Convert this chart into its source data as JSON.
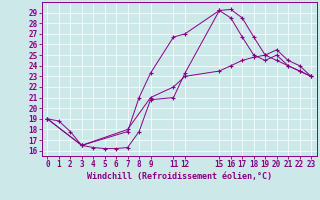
{
  "xlabel": "Windchill (Refroidissement éolien,°C)",
  "background_color": "#cce8e8",
  "line_color": "#880088",
  "xlim": [
    -0.5,
    23.5
  ],
  "ylim": [
    15.5,
    30.0
  ],
  "yticks": [
    16,
    17,
    18,
    19,
    20,
    21,
    22,
    23,
    24,
    25,
    26,
    27,
    28,
    29
  ],
  "xtick_positions": [
    0,
    1,
    2,
    3,
    4,
    5,
    6,
    7,
    8,
    9,
    11,
    12,
    15,
    16,
    17,
    18,
    19,
    20,
    21,
    22,
    23
  ],
  "xtick_labels": [
    "0",
    "1",
    "2",
    "3",
    "4",
    "5",
    "6",
    "7",
    "8",
    "9",
    "11",
    "12",
    "15",
    "16",
    "17",
    "18",
    "19",
    "20",
    "21",
    "22",
    "23"
  ],
  "curve1_x": [
    0,
    1,
    2,
    3,
    4,
    5,
    6,
    7,
    8,
    9,
    11,
    12,
    15,
    16,
    17,
    18,
    19,
    20,
    21,
    22,
    23
  ],
  "curve1_y": [
    19.0,
    18.8,
    17.8,
    16.5,
    16.3,
    16.2,
    16.2,
    16.3,
    17.8,
    20.8,
    21.0,
    23.3,
    29.2,
    29.3,
    28.5,
    26.7,
    25.0,
    24.5,
    24.0,
    23.5,
    23.0
  ],
  "curve2_x": [
    0,
    3,
    7,
    8,
    9,
    11,
    12,
    15,
    16,
    17,
    18,
    19,
    20,
    21,
    22,
    23
  ],
  "curve2_y": [
    19.0,
    16.5,
    17.8,
    21.0,
    23.3,
    26.7,
    27.0,
    29.2,
    28.5,
    26.7,
    25.0,
    24.5,
    25.0,
    24.0,
    23.5,
    23.0
  ],
  "curve3_x": [
    0,
    3,
    7,
    9,
    11,
    12,
    15,
    16,
    17,
    18,
    19,
    20,
    21,
    22,
    23
  ],
  "curve3_y": [
    19.0,
    16.5,
    18.0,
    21.0,
    22.0,
    23.0,
    23.5,
    24.0,
    24.5,
    24.8,
    25.0,
    25.5,
    24.5,
    24.0,
    23.0
  ],
  "tick_fontsize": 5.5,
  "xlabel_fontsize": 6.0,
  "grid_color": "#ffffff"
}
